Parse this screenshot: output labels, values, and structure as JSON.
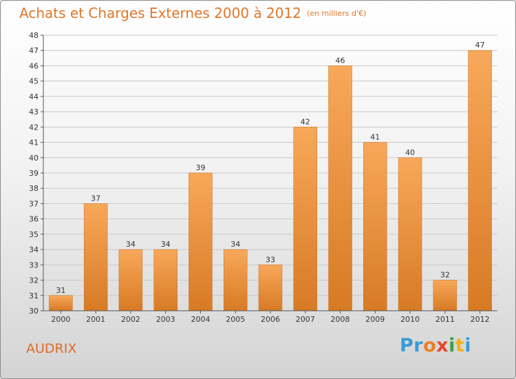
{
  "header": {
    "title": "Achats et Charges Externes 2000 à 2012",
    "unit": "(en milliers d'€)"
  },
  "commune": "AUDRIX",
  "logo": {
    "text": "Proxiti",
    "parts": [
      "Pr",
      "o",
      "x",
      "i",
      "t",
      "i"
    ]
  },
  "colors": {
    "bar_top": "#f8a85a",
    "bar_bottom": "#d77a24",
    "title": "#e0762a",
    "grid": "#c8c8c8"
  },
  "chart_data": {
    "type": "bar",
    "title": "Achats et Charges Externes 2000 à 2012",
    "subtitle": "(en milliers d'€)",
    "categories": [
      "2000",
      "2001",
      "2002",
      "2003",
      "2004",
      "2005",
      "2006",
      "2007",
      "2008",
      "2009",
      "2010",
      "2011",
      "2012"
    ],
    "values": [
      31,
      37,
      34,
      34,
      39,
      34,
      33,
      42,
      46,
      41,
      40,
      32,
      47
    ],
    "ylim": [
      30,
      48
    ],
    "yticks": [
      30,
      31,
      32,
      33,
      34,
      35,
      36,
      37,
      38,
      39,
      40,
      41,
      42,
      43,
      44,
      45,
      46,
      47,
      48
    ],
    "grid": true,
    "legend": "none"
  }
}
